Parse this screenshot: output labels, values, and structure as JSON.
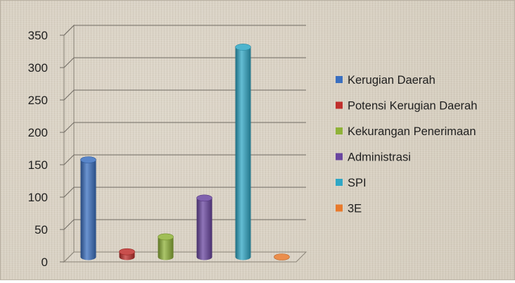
{
  "chart_data": {
    "type": "bar",
    "title": "",
    "xlabel": "",
    "ylabel": "",
    "ylim": [
      0,
      350
    ],
    "y_ticks": [
      "0",
      "50",
      "100",
      "150",
      "200",
      "250",
      "300",
      "350"
    ],
    "grid": true,
    "legend_position": "right",
    "style": "3d-cylinder",
    "series": [
      {
        "name": "Kerugian Daerah",
        "value": 150,
        "color": "#3a6fc0"
      },
      {
        "name": "Potensi Kerugian Daerah",
        "value": 8,
        "color": "#c0302d"
      },
      {
        "name": "Kekurangan Penerimaan",
        "value": 31,
        "color": "#8fb238"
      },
      {
        "name": "Administrasi",
        "value": 91,
        "color": "#6a46a0"
      },
      {
        "name": "SPI",
        "value": 324,
        "color": "#2fa7c5"
      },
      {
        "name": "3E",
        "value": 0,
        "color": "#e87a2c"
      }
    ]
  }
}
